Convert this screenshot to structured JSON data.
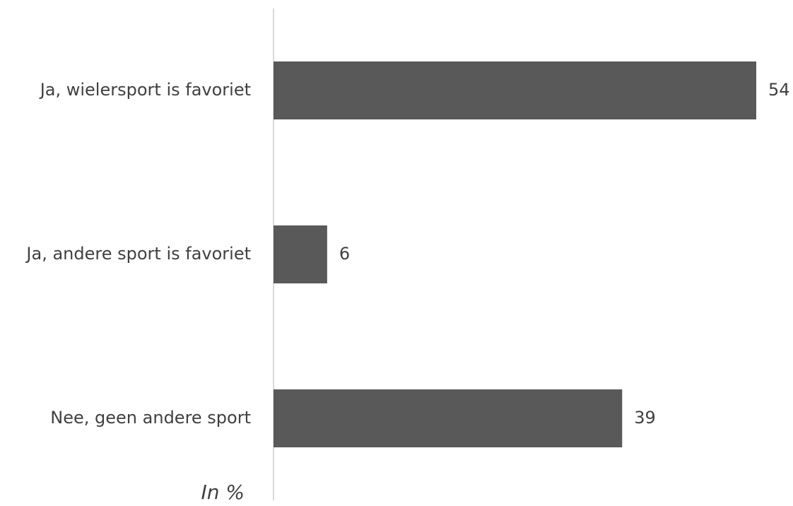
{
  "chart_data": {
    "type": "bar",
    "orientation": "horizontal",
    "categories": [
      "Ja, wielersport is favoriet",
      "Ja, andere sport is favoriet",
      "Nee, geen andere sport"
    ],
    "values": [
      54,
      6,
      39
    ],
    "data_labels": [
      "54",
      "6",
      "39"
    ],
    "unit_note": "In %",
    "title": "",
    "xlabel": "",
    "ylabel": "",
    "xlim": [
      0,
      54
    ],
    "grid": false,
    "legend": "none",
    "colors": {
      "bar": "#595959",
      "axis": "#d9d9d9",
      "text": "#404040"
    }
  }
}
